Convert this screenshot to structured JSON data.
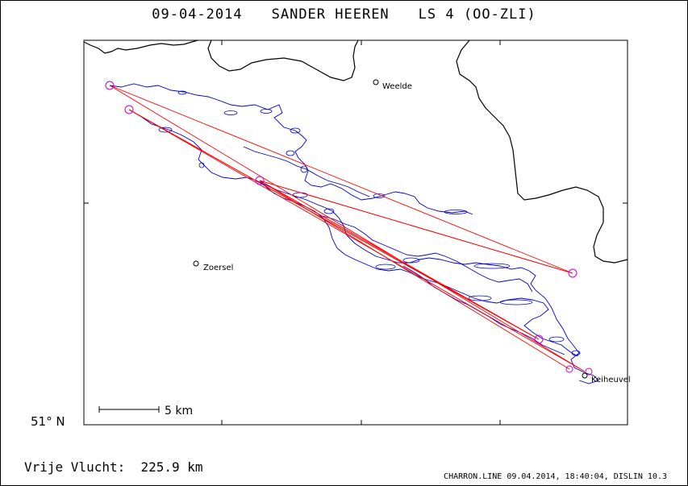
{
  "header": {
    "date": "09-04-2014",
    "pilot": "SANDER HEEREN",
    "glider": "LS 4 (OO-ZLI)"
  },
  "axis": {
    "lat_label": "51° N"
  },
  "towns": [
    {
      "name": "Weelde"
    },
    {
      "name": "Zoersel"
    },
    {
      "name": "Keiheuvel"
    }
  ],
  "scale": {
    "label": "5 km"
  },
  "result": {
    "distance_label": "Vrije Vlucht:",
    "distance_value": "225.9 km"
  },
  "footer": {
    "text": "CHARRON.LINE 09.04.2014, 18:40:04, DISLIN 10.3"
  },
  "colors": {
    "track": "#0000cc",
    "legs": "#ff0000",
    "turnpoints": "#cc00cc",
    "coast": "#000000"
  }
}
